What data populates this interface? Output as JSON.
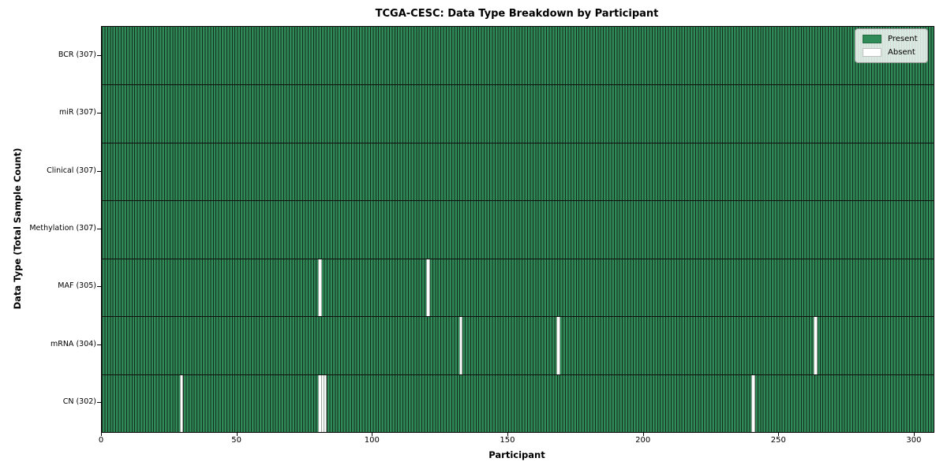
{
  "chart_data": {
    "type": "heatmap",
    "title": "TCGA-CESC: Data Type Breakdown by Participant",
    "xlabel": "Participant",
    "ylabel": "Data Type (Total Sample Count)",
    "n_participants": 307,
    "x_ticks": [
      0,
      50,
      100,
      150,
      200,
      250,
      300
    ],
    "xlim": [
      0,
      307
    ],
    "grid": false,
    "legend_position": "upper right",
    "rows": [
      {
        "label": "BCR (307)",
        "data_type": "BCR",
        "total": 307,
        "absent_participants": []
      },
      {
        "label": "miR (307)",
        "data_type": "miR",
        "total": 307,
        "absent_participants": []
      },
      {
        "label": "Clinical (307)",
        "data_type": "Clinical",
        "total": 307,
        "absent_participants": []
      },
      {
        "label": "Methylation (307)",
        "data_type": "Methylation",
        "total": 307,
        "absent_participants": []
      },
      {
        "label": "MAF (305)",
        "data_type": "MAF",
        "total": 305,
        "absent_participants": [
          80,
          120
        ]
      },
      {
        "label": "mRNA (304)",
        "data_type": "mRNA",
        "total": 304,
        "absent_participants": [
          132,
          168,
          263
        ]
      },
      {
        "label": "CN (302)",
        "data_type": "CN",
        "total": 302,
        "absent_participants": [
          29,
          80,
          81,
          82,
          240
        ]
      }
    ],
    "legend": [
      {
        "label": "Present",
        "color": "#2e8b57"
      },
      {
        "label": "Absent",
        "color": "#ffffff"
      }
    ],
    "colors": {
      "present": "#2e8b57",
      "absent": "#ffffff",
      "bar_edge": "#152a1d",
      "row_separator": "#0d0d0d",
      "axis": "#000000"
    }
  }
}
